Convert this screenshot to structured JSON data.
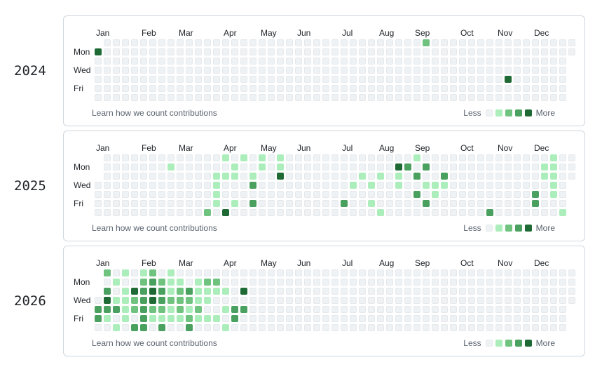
{
  "months": [
    "Jan",
    "Feb",
    "Mar",
    "Apr",
    "May",
    "Jun",
    "Jul",
    "Aug",
    "Sep",
    "Oct",
    "Nov",
    "Dec"
  ],
  "days": [
    "Mon",
    "Wed",
    "Fri"
  ],
  "legend": {
    "less": "Less",
    "more": "More"
  },
  "learn_text": "Learn how we count contributions",
  "colors": {
    "level0": "#eff2f5",
    "level1": "#aceebb",
    "level2": "#6fc37f",
    "level3": "#4aa05f",
    "level4": "#1f6a34"
  },
  "years": [
    {
      "year": "2024",
      "contributions": [
        {
          "week": 0,
          "day": 1,
          "level": 4
        },
        {
          "week": 36,
          "day": 0,
          "level": 2
        },
        {
          "week": 45,
          "day": 4,
          "level": 4
        }
      ]
    },
    {
      "year": "2025",
      "contributions": [
        {
          "week": 8,
          "day": 1,
          "level": 1
        },
        {
          "week": 12,
          "day": 6,
          "level": 2
        },
        {
          "week": 14,
          "day": 6,
          "level": 4
        },
        {
          "week": 14,
          "day": 0,
          "level": 1
        },
        {
          "week": 13,
          "day": 2,
          "level": 1
        },
        {
          "week": 13,
          "day": 3,
          "level": 1
        },
        {
          "week": 13,
          "day": 4,
          "level": 1
        },
        {
          "week": 13,
          "day": 5,
          "level": 1
        },
        {
          "week": 14,
          "day": 2,
          "level": 1
        },
        {
          "week": 15,
          "day": 1,
          "level": 1
        },
        {
          "week": 15,
          "day": 2,
          "level": 1
        },
        {
          "week": 15,
          "day": 5,
          "level": 1
        },
        {
          "week": 16,
          "day": 0,
          "level": 1
        },
        {
          "week": 17,
          "day": 2,
          "level": 1
        },
        {
          "week": 17,
          "day": 3,
          "level": 3
        },
        {
          "week": 17,
          "day": 5,
          "level": 3
        },
        {
          "week": 18,
          "day": 0,
          "level": 1
        },
        {
          "week": 18,
          "day": 1,
          "level": 1
        },
        {
          "week": 20,
          "day": 0,
          "level": 1
        },
        {
          "week": 20,
          "day": 1,
          "level": 1
        },
        {
          "week": 20,
          "day": 2,
          "level": 4
        },
        {
          "week": 27,
          "day": 5,
          "level": 3
        },
        {
          "week": 28,
          "day": 3,
          "level": 1
        },
        {
          "week": 29,
          "day": 2,
          "level": 1
        },
        {
          "week": 30,
          "day": 3,
          "level": 1
        },
        {
          "week": 30,
          "day": 5,
          "level": 1
        },
        {
          "week": 31,
          "day": 2,
          "level": 1
        },
        {
          "week": 31,
          "day": 6,
          "level": 1
        },
        {
          "week": 33,
          "day": 1,
          "level": 4
        },
        {
          "week": 33,
          "day": 2,
          "level": 1
        },
        {
          "week": 33,
          "day": 3,
          "level": 1
        },
        {
          "week": 34,
          "day": 1,
          "level": 3
        },
        {
          "week": 35,
          "day": 0,
          "level": 1
        },
        {
          "week": 35,
          "day": 2,
          "level": 3
        },
        {
          "week": 35,
          "day": 4,
          "level": 3
        },
        {
          "week": 36,
          "day": 1,
          "level": 3
        },
        {
          "week": 36,
          "day": 3,
          "level": 1
        },
        {
          "week": 36,
          "day": 5,
          "level": 3
        },
        {
          "week": 37,
          "day": 3,
          "level": 1
        },
        {
          "week": 37,
          "day": 4,
          "level": 1
        },
        {
          "week": 38,
          "day": 2,
          "level": 3
        },
        {
          "week": 38,
          "day": 3,
          "level": 1
        },
        {
          "week": 43,
          "day": 6,
          "level": 3
        },
        {
          "week": 48,
          "day": 4,
          "level": 3
        },
        {
          "week": 48,
          "day": 5,
          "level": 3
        },
        {
          "week": 49,
          "day": 1,
          "level": 1
        },
        {
          "week": 49,
          "day": 2,
          "level": 1
        },
        {
          "week": 50,
          "day": 0,
          "level": 1
        },
        {
          "week": 50,
          "day": 1,
          "level": 1
        },
        {
          "week": 50,
          "day": 2,
          "level": 1
        },
        {
          "week": 50,
          "day": 3,
          "level": 1
        },
        {
          "week": 50,
          "day": 4,
          "level": 1
        },
        {
          "week": 51,
          "day": 6,
          "level": 1
        }
      ]
    },
    {
      "year": "2026",
      "contributions": [
        {
          "week": 0,
          "day": 4,
          "level": 3
        },
        {
          "week": 0,
          "day": 5,
          "level": 3
        },
        {
          "week": 1,
          "day": 0,
          "level": 2
        },
        {
          "week": 1,
          "day": 2,
          "level": 3
        },
        {
          "week": 1,
          "day": 3,
          "level": 4
        },
        {
          "week": 1,
          "day": 4,
          "level": 3
        },
        {
          "week": 1,
          "day": 5,
          "level": 1
        },
        {
          "week": 2,
          "day": 1,
          "level": 1
        },
        {
          "week": 2,
          "day": 3,
          "level": 1
        },
        {
          "week": 2,
          "day": 4,
          "level": 3
        },
        {
          "week": 2,
          "day": 6,
          "level": 1
        },
        {
          "week": 3,
          "day": 0,
          "level": 1
        },
        {
          "week": 3,
          "day": 2,
          "level": 1
        },
        {
          "week": 3,
          "day": 3,
          "level": 1
        },
        {
          "week": 3,
          "day": 4,
          "level": 1
        },
        {
          "week": 3,
          "day": 5,
          "level": 1
        },
        {
          "week": 4,
          "day": 2,
          "level": 4
        },
        {
          "week": 4,
          "day": 3,
          "level": 2
        },
        {
          "week": 4,
          "day": 4,
          "level": 2
        },
        {
          "week": 4,
          "day": 6,
          "level": 3
        },
        {
          "week": 5,
          "day": 0,
          "level": 1
        },
        {
          "week": 5,
          "day": 1,
          "level": 2
        },
        {
          "week": 5,
          "day": 2,
          "level": 3
        },
        {
          "week": 5,
          "day": 3,
          "level": 3
        },
        {
          "week": 5,
          "day": 4,
          "level": 3
        },
        {
          "week": 5,
          "day": 5,
          "level": 3
        },
        {
          "week": 5,
          "day": 6,
          "level": 3
        },
        {
          "week": 6,
          "day": 0,
          "level": 2
        },
        {
          "week": 6,
          "day": 1,
          "level": 3
        },
        {
          "week": 6,
          "day": 2,
          "level": 4
        },
        {
          "week": 6,
          "day": 3,
          "level": 4
        },
        {
          "week": 6,
          "day": 4,
          "level": 2
        },
        {
          "week": 6,
          "day": 5,
          "level": 1
        },
        {
          "week": 7,
          "day": 1,
          "level": 2
        },
        {
          "week": 7,
          "day": 2,
          "level": 3
        },
        {
          "week": 7,
          "day": 3,
          "level": 3
        },
        {
          "week": 7,
          "day": 4,
          "level": 2
        },
        {
          "week": 7,
          "day": 5,
          "level": 1
        },
        {
          "week": 7,
          "day": 6,
          "level": 3
        },
        {
          "week": 8,
          "day": 0,
          "level": 1
        },
        {
          "week": 8,
          "day": 1,
          "level": 1
        },
        {
          "week": 8,
          "day": 2,
          "level": 1
        },
        {
          "week": 8,
          "day": 3,
          "level": 2
        },
        {
          "week": 8,
          "day": 4,
          "level": 1
        },
        {
          "week": 8,
          "day": 5,
          "level": 1
        },
        {
          "week": 9,
          "day": 1,
          "level": 1
        },
        {
          "week": 9,
          "day": 2,
          "level": 2
        },
        {
          "week": 9,
          "day": 3,
          "level": 2
        },
        {
          "week": 9,
          "day": 4,
          "level": 2
        },
        {
          "week": 9,
          "day": 5,
          "level": 1
        },
        {
          "week": 10,
          "day": 2,
          "level": 3
        },
        {
          "week": 10,
          "day": 3,
          "level": 2
        },
        {
          "week": 10,
          "day": 4,
          "level": 1
        },
        {
          "week": 10,
          "day": 5,
          "level": 2
        },
        {
          "week": 10,
          "day": 6,
          "level": 3
        },
        {
          "week": 11,
          "day": 1,
          "level": 1
        },
        {
          "week": 11,
          "day": 2,
          "level": 1
        },
        {
          "week": 11,
          "day": 3,
          "level": 1
        },
        {
          "week": 11,
          "day": 4,
          "level": 2
        },
        {
          "week": 11,
          "day": 5,
          "level": 1
        },
        {
          "week": 12,
          "day": 1,
          "level": 2
        },
        {
          "week": 12,
          "day": 2,
          "level": 1
        },
        {
          "week": 12,
          "day": 3,
          "level": 1
        },
        {
          "week": 12,
          "day": 5,
          "level": 1
        },
        {
          "week": 13,
          "day": 1,
          "level": 2
        },
        {
          "week": 13,
          "day": 2,
          "level": 1
        },
        {
          "week": 13,
          "day": 5,
          "level": 1
        },
        {
          "week": 14,
          "day": 2,
          "level": 1
        },
        {
          "week": 14,
          "day": 4,
          "level": 1
        },
        {
          "week": 14,
          "day": 6,
          "level": 1
        },
        {
          "week": 15,
          "day": 4,
          "level": 3
        },
        {
          "week": 15,
          "day": 5,
          "level": 3
        },
        {
          "week": 16,
          "day": 2,
          "level": 4
        },
        {
          "week": 16,
          "day": 4,
          "level": 3
        }
      ]
    }
  ]
}
